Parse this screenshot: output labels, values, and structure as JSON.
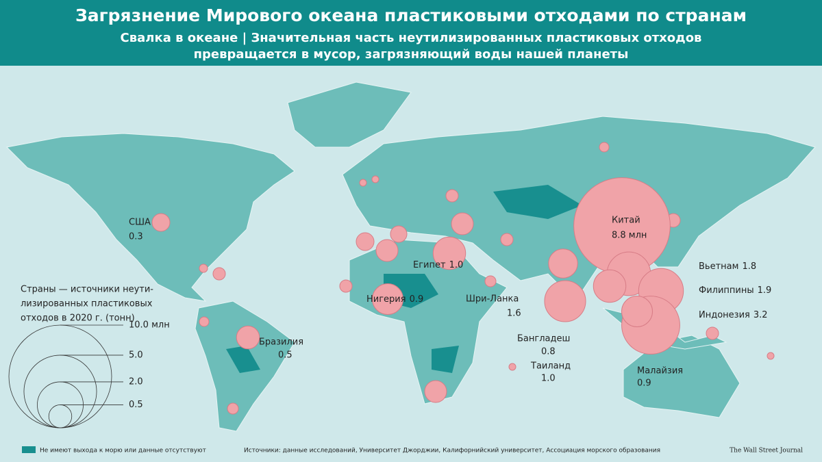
{
  "header": {
    "title": "Загрязнение Мирового океана пластиковыми отходами по странам",
    "subtitle_lines": [
      "Свалка в океане | Значительная часть неутилизированных пластиковых отходов",
      "превращается в мусор, загрязняющий воды нашей планеты"
    ]
  },
  "countries": [
    {
      "name": "США",
      "value": 0.3
    },
    {
      "name": "Китай",
      "value": 8.8,
      "value_label": "8.8 млн"
    },
    {
      "name": "Египет",
      "value": 1.0,
      "value_label": "1.0"
    },
    {
      "name": "Нигерия",
      "value": 0.9
    },
    {
      "name": "Шри-Ланка",
      "value": 1.6
    },
    {
      "name": "Бразилия",
      "value": 0.5
    },
    {
      "name": "Вьетнам",
      "value": 1.8
    },
    {
      "name": "Филиппины",
      "value": 1.9
    },
    {
      "name": "Индонезия",
      "value": 3.2
    },
    {
      "name": "Бангладеш",
      "value": 0.8
    },
    {
      "name": "Таиланд",
      "value": 1.0,
      "value_label": "1.0"
    },
    {
      "name": "Малайзия",
      "value": 0.9
    }
  ],
  "legend": {
    "title_lines": [
      "Страны — источники неути-",
      "лизированных пластиковых",
      "отходов в 2020 г. (тонн)"
    ],
    "sizes": [
      {
        "value": 10,
        "label": "10.0 млн"
      },
      {
        "value": 5,
        "label": "5.0"
      },
      {
        "value": 2,
        "label": "2.0"
      },
      0.5
    ]
  },
  "footer": {
    "landlocked": "Не имеют выхода к морю или данные отсутствуют",
    "sources": "Источники: данные исследований, Университет Джорджии, Калифорнийский университет, Ассоциация морского образования",
    "credit": "The Wall Street Journal"
  }
}
